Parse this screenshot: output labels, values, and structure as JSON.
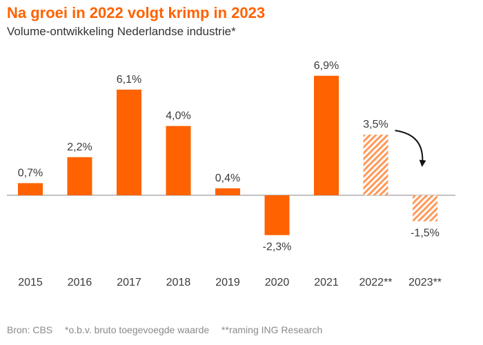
{
  "title": "Na groei in 2022 volgt krimp in 2023",
  "subtitle": "Volume-ontwikkeling Nederlandse industrie*",
  "footer": {
    "source": "Bron: CBS",
    "note1": "*o.b.v. bruto toegevoegde waarde",
    "note2": "**raming ING Research"
  },
  "colors": {
    "bar": "#ff6200",
    "forecast": "#ff6200",
    "axis": "#9e9e9e"
  },
  "chart_data": {
    "type": "bar",
    "categories": [
      "2015",
      "2016",
      "2017",
      "2018",
      "2019",
      "2020",
      "2021",
      "2022**",
      "2023**"
    ],
    "values": [
      0.7,
      2.2,
      6.1,
      4.0,
      0.4,
      -2.3,
      6.9,
      3.5,
      -1.5
    ],
    "value_labels": [
      "0,7%",
      "2,2%",
      "6,1%",
      "4,0%",
      "0,4%",
      "-2,3%",
      "6,9%",
      "3,5%",
      "-1,5%"
    ],
    "forecast": [
      false,
      false,
      false,
      false,
      false,
      false,
      false,
      true,
      true
    ],
    "ylim": [
      -3.5,
      8.0
    ],
    "grid": false,
    "annotation": "curved arrow from 2022** to 2023**"
  }
}
